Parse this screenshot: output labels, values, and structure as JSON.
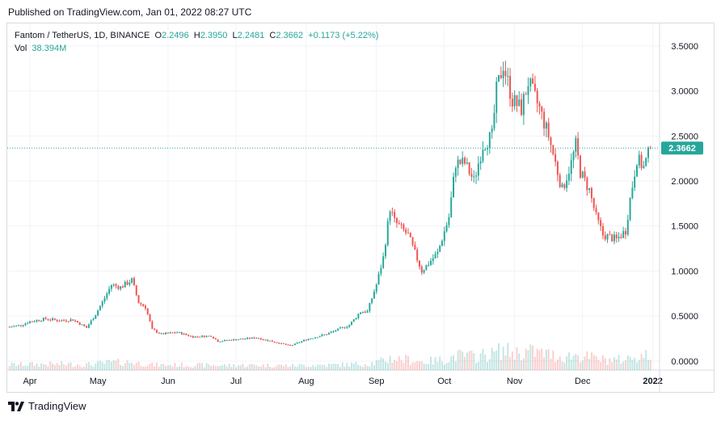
{
  "header": {
    "published": "Published on TradingView.com, Jan 01, 2022 08:27 UTC"
  },
  "legend": {
    "symbol": "Fantom / TetherUS, 1D, BINANCE",
    "o_label": "O",
    "o": "2.2496",
    "h_label": "H",
    "h": "2.3950",
    "l_label": "L",
    "l": "2.2481",
    "c_label": "C",
    "c": "2.3662",
    "change": "+0.1173 (+5.22%)",
    "vol_label": "Vol",
    "vol": "38.394M"
  },
  "footer": {
    "brand": "TradingView",
    "logo_icon": "tradingview-logo-icon"
  },
  "colors": {
    "up": "#26a69a",
    "down": "#ef5350",
    "grid": "#f0f3fa",
    "axis_text": "#131722"
  },
  "chart_data": {
    "type": "candlestick",
    "title": "Fantom / TetherUS, 1D, BINANCE",
    "y_ticks": [
      "3.5000",
      "3.0000",
      "2.5000",
      "2.0000",
      "1.5000",
      "1.0000",
      "0.5000",
      "0.0000"
    ],
    "x_ticks": [
      "Apr",
      "May",
      "Jun",
      "Jul",
      "Aug",
      "Sep",
      "Oct",
      "Nov",
      "Dec",
      "2022"
    ],
    "ylim": [
      -0.1,
      3.75
    ],
    "last_price": 2.3662,
    "last_price_label": "2.3662",
    "grid": true,
    "price_path": [
      [
        "Mar 23",
        0.38
      ],
      [
        "Mar 28",
        0.4
      ],
      [
        "Apr 01",
        0.44
      ],
      [
        "Apr 08",
        0.47
      ],
      [
        "Apr 14",
        0.45
      ],
      [
        "Apr 20",
        0.46
      ],
      [
        "Apr 26",
        0.37
      ],
      [
        "Apr 30",
        0.52
      ],
      [
        "May 04",
        0.7
      ],
      [
        "May 07",
        0.85
      ],
      [
        "May 11",
        0.82
      ],
      [
        "May 16",
        0.9
      ],
      [
        "May 19",
        0.65
      ],
      [
        "May 22",
        0.6
      ],
      [
        "May 25",
        0.35
      ],
      [
        "May 29",
        0.3
      ],
      [
        "Jun 05",
        0.32
      ],
      [
        "Jun 12",
        0.27
      ],
      [
        "Jun 20",
        0.28
      ],
      [
        "Jun 23",
        0.22
      ],
      [
        "Jul 01",
        0.24
      ],
      [
        "Jul 10",
        0.26
      ],
      [
        "Jul 20",
        0.2
      ],
      [
        "Jul 25",
        0.17
      ],
      [
        "Aug 01",
        0.24
      ],
      [
        "Aug 10",
        0.3
      ],
      [
        "Aug 20",
        0.4
      ],
      [
        "Aug 25",
        0.55
      ],
      [
        "Aug 28",
        0.55
      ],
      [
        "Sep 01",
        0.85
      ],
      [
        "Sep 04",
        1.15
      ],
      [
        "Sep 07",
        1.7
      ],
      [
        "Sep 09",
        1.55
      ],
      [
        "Sep 15",
        1.4
      ],
      [
        "Sep 21",
        1.0
      ],
      [
        "Sep 28",
        1.2
      ],
      [
        "Oct 03",
        1.6
      ],
      [
        "Oct 06",
        2.2
      ],
      [
        "Oct 10",
        2.2
      ],
      [
        "Oct 14",
        2.0
      ],
      [
        "Oct 18",
        2.4
      ],
      [
        "Oct 22",
        2.5
      ],
      [
        "Oct 24",
        3.0
      ],
      [
        "Oct 27",
        3.3
      ],
      [
        "Oct 31",
        2.9
      ],
      [
        "Nov 04",
        2.8
      ],
      [
        "Nov 07",
        3.1
      ],
      [
        "Nov 12",
        2.8
      ],
      [
        "Nov 16",
        2.5
      ],
      [
        "Nov 22",
        1.9
      ],
      [
        "Nov 26",
        2.2
      ],
      [
        "Nov 28",
        2.4
      ],
      [
        "Nov 30",
        2.1
      ],
      [
        "Dec 04",
        1.9
      ],
      [
        "Dec 07",
        1.6
      ],
      [
        "Dec 10",
        1.4
      ],
      [
        "Dec 16",
        1.35
      ],
      [
        "Dec 20",
        1.45
      ],
      [
        "Dec 22",
        1.8
      ],
      [
        "Dec 25",
        2.25
      ],
      [
        "Dec 28",
        2.15
      ],
      [
        "Dec 31",
        2.37
      ]
    ],
    "volume_ylim": [
      0,
      80
    ]
  }
}
